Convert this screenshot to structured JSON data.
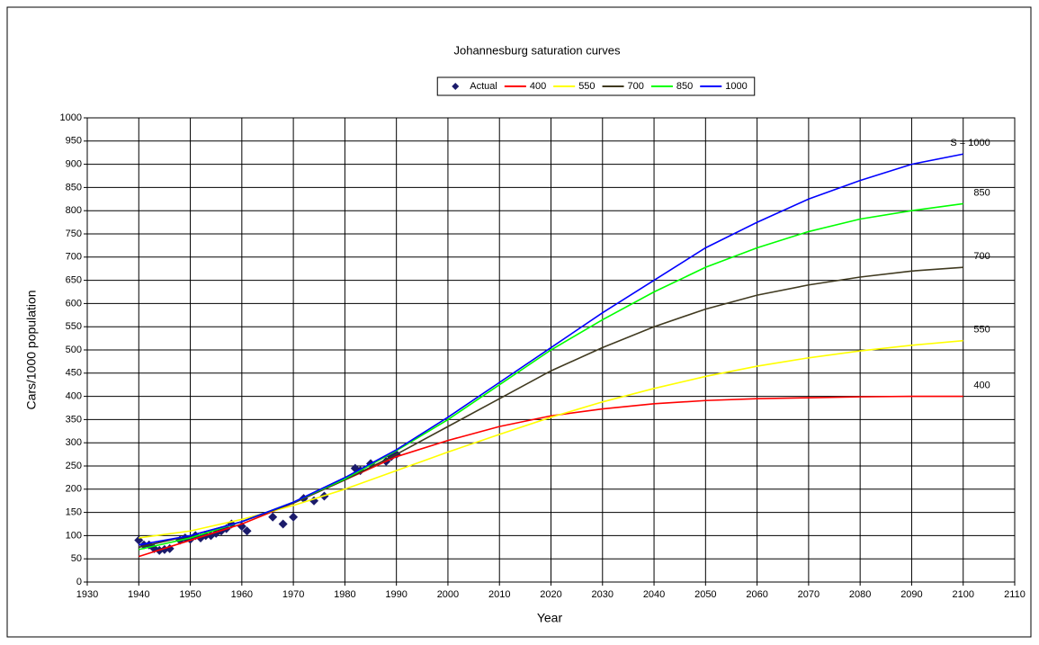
{
  "chart_data": {
    "type": "line",
    "title": "Johannesburg saturation curves",
    "x_label": "Year",
    "y_label": "Cars/1000 population",
    "legend": "top",
    "grid": true,
    "xlim": [
      1930,
      2110
    ],
    "ylim": [
      0,
      1000
    ],
    "xticks": [
      1930,
      1940,
      1950,
      1960,
      1970,
      1980,
      1990,
      2000,
      2010,
      2020,
      2030,
      2040,
      2050,
      2060,
      2070,
      2080,
      2090,
      2100,
      2110
    ],
    "yticks": [
      0,
      50,
      100,
      150,
      200,
      250,
      300,
      350,
      400,
      450,
      500,
      550,
      600,
      650,
      700,
      750,
      800,
      850,
      900,
      950,
      1000
    ],
    "x": [
      1940,
      1950,
      1960,
      1970,
      1980,
      1990,
      2000,
      2010,
      2020,
      2030,
      2040,
      2050,
      2060,
      2070,
      2080,
      2090,
      2100
    ],
    "series": [
      {
        "name": "Actual",
        "type": "scatter",
        "color": "#1b1b6b",
        "x": [
          1940,
          1941,
          1942,
          1943,
          1944,
          1945,
          1946,
          1948,
          1949,
          1950,
          1951,
          1952,
          1953,
          1954,
          1955,
          1956,
          1957,
          1958,
          1960,
          1961,
          1966,
          1968,
          1970,
          1972,
          1974,
          1976,
          1982,
          1983,
          1985,
          1988,
          1989,
          1990
        ],
        "values": [
          90,
          80,
          80,
          72,
          68,
          70,
          72,
          90,
          95,
          92,
          100,
          95,
          100,
          100,
          105,
          110,
          115,
          125,
          120,
          110,
          140,
          125,
          140,
          180,
          175,
          185,
          245,
          240,
          255,
          260,
          270,
          275
        ]
      },
      {
        "name": "400",
        "color": "#ff0000",
        "values": [
          55,
          90,
          125,
          170,
          220,
          270,
          305,
          335,
          358,
          373,
          384,
          391,
          395,
          397,
          399,
          400,
          400
        ]
      },
      {
        "name": "550",
        "color": "#ffff00",
        "values": [
          95,
          110,
          135,
          165,
          200,
          240,
          280,
          318,
          355,
          388,
          417,
          443,
          465,
          483,
          498,
          510,
          520
        ]
      },
      {
        "name": "700",
        "color": "#403a20",
        "values": [
          75,
          100,
          130,
          170,
          220,
          275,
          335,
          395,
          455,
          505,
          550,
          588,
          618,
          640,
          657,
          670,
          678
        ]
      },
      {
        "name": "850",
        "color": "#00ff00",
        "values": [
          70,
          95,
          130,
          172,
          222,
          283,
          350,
          425,
          500,
          565,
          625,
          678,
          720,
          755,
          782,
          800,
          815
        ]
      },
      {
        "name": "1000",
        "color": "#0000ff",
        "values": [
          80,
          100,
          130,
          172,
          225,
          285,
          355,
          430,
          505,
          580,
          650,
          720,
          775,
          825,
          865,
          900,
          922
        ]
      }
    ],
    "annotations": [
      "S = 1000",
      "850",
      "700",
      "550",
      "400"
    ]
  }
}
